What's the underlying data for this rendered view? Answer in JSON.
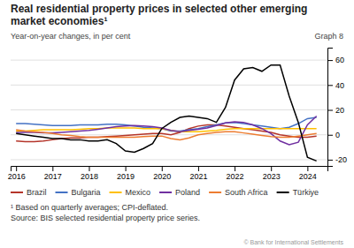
{
  "chart_data": {
    "type": "line",
    "title": "Real residential property prices in selected other emerging market economies¹",
    "subtitle": "Year-on-year changes, in per cent",
    "annotations": [
      "Graph 8",
      "¹ Based on quarterly averages; CPI-deflated.",
      "Source: BIS selected residential property price series.",
      "© Bank for International Settlements"
    ],
    "x": [
      2016.0,
      2016.25,
      2016.5,
      2016.75,
      2017.0,
      2017.25,
      2017.5,
      2017.75,
      2018.0,
      2018.25,
      2018.5,
      2018.75,
      2019.0,
      2019.25,
      2019.5,
      2019.75,
      2020.0,
      2020.25,
      2020.5,
      2020.75,
      2021.0,
      2021.25,
      2021.5,
      2021.75,
      2022.0,
      2022.25,
      2022.5,
      2022.75,
      2023.0,
      2023.25,
      2023.5,
      2023.75,
      2024.0,
      2024.25
    ],
    "xlim": [
      2015.85,
      2024.55
    ],
    "xticks": [
      2016,
      2017,
      2018,
      2019,
      2020,
      2021,
      2022,
      2023,
      2024
    ],
    "ylim": [
      -25,
      70
    ],
    "yticks": [
      -20,
      0,
      20,
      40,
      60
    ],
    "grid": true,
    "legend": "bottom",
    "series": [
      {
        "name": "Brazil",
        "color": "#b5352a",
        "values": [
          -5,
          -5.5,
          -5.5,
          -5,
          -4,
          -3,
          -2.5,
          -2.5,
          -2,
          -2,
          -1.5,
          -1,
          -0.5,
          0,
          0.5,
          1,
          1,
          0,
          2,
          5,
          7,
          8,
          8,
          7,
          6,
          5,
          4,
          3,
          2,
          0,
          -1,
          -2,
          -2,
          -1
        ]
      },
      {
        "name": "Bulgaria",
        "color": "#4472c4",
        "values": [
          9,
          9,
          8.5,
          8,
          7.5,
          7.5,
          7.5,
          8,
          8,
          8,
          8.5,
          8.5,
          8,
          7,
          6,
          5.5,
          5,
          3,
          3,
          4,
          5,
          6.5,
          8,
          9.5,
          10,
          9,
          8,
          7,
          6,
          5,
          6,
          9,
          13,
          14
        ]
      },
      {
        "name": "Mexico",
        "color": "#ffc000",
        "values": [
          3,
          3,
          3.5,
          4,
          4,
          4,
          4,
          4.5,
          5,
          5,
          5.5,
          5.5,
          5.5,
          5.5,
          5,
          5,
          5,
          3.5,
          2.5,
          2.5,
          2.5,
          3,
          3.5,
          4.5,
          5,
          5,
          5,
          5,
          5,
          5,
          5,
          5,
          5,
          5
        ]
      },
      {
        "name": "Poland",
        "color": "#7030a0",
        "values": [
          2,
          2,
          2,
          1.5,
          1.5,
          2,
          2.5,
          3,
          3.5,
          4.5,
          5.5,
          6.5,
          7,
          7.5,
          7,
          6.5,
          5.5,
          3.5,
          2.5,
          3.5,
          4.5,
          5.5,
          7.5,
          9.5,
          10.5,
          10,
          8,
          5,
          1,
          -5,
          -8,
          -6,
          8,
          15
        ]
      },
      {
        "name": "South Africa",
        "color": "#ed7d31",
        "values": [
          4,
          3,
          2.5,
          2,
          1,
          0,
          -0.5,
          -1.5,
          -2,
          -2,
          -2,
          -2,
          -2,
          -2,
          -1.5,
          -1,
          -1,
          -3,
          -4,
          -2.5,
          0,
          1,
          2,
          2.5,
          2.5,
          1.5,
          0.5,
          -0.5,
          -1.5,
          -2,
          -2,
          -1,
          0,
          1
        ]
      },
      {
        "name": "Türkiye",
        "color": "#000000",
        "values": [
          1,
          0,
          -1,
          -2,
          -3,
          -3,
          -4,
          -4,
          -5,
          -5,
          -4,
          -7,
          -13,
          -14,
          -11,
          -7,
          5,
          10,
          14,
          15,
          14,
          13,
          10,
          22,
          44,
          53,
          54,
          51,
          56,
          56,
          31,
          10,
          -18,
          -21
        ]
      }
    ]
  }
}
